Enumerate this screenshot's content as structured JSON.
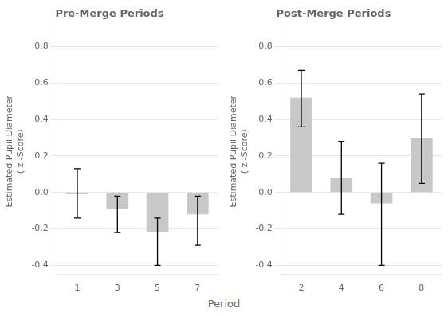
{
  "chart_data": [
    {
      "type": "bar",
      "title": "Pre-Merge Periods",
      "ylabel": "Estimated Pupil Diameter\n( z -Score)",
      "categories": [
        "1",
        "3",
        "5",
        "7"
      ],
      "values": [
        -0.01,
        -0.09,
        -0.22,
        -0.12
      ],
      "errors_upper": [
        0.14,
        0.07,
        0.08,
        0.1
      ],
      "errors_lower": [
        0.13,
        0.13,
        0.18,
        0.17
      ],
      "color": "#c8c8c8",
      "ylim": [
        -0.45,
        0.9
      ],
      "yticks": [
        -0.4,
        -0.2,
        {
          "value": 0.0,
          "label": "0.0"
        },
        0.2,
        0.4,
        0.6,
        0.8
      ],
      "grid": true
    },
    {
      "type": "bar",
      "title": "Post-Merge Periods",
      "ylabel": "Estimated Pupil Diameter\n( z -Score)",
      "categories": [
        "2",
        "4",
        "6",
        "8"
      ],
      "values": [
        0.52,
        0.08,
        -0.06,
        0.3
      ],
      "errors_upper": [
        0.15,
        0.2,
        0.22,
        0.24
      ],
      "errors_lower": [
        0.16,
        0.2,
        0.34,
        0.25
      ],
      "color": "#c8c8c8",
      "ylim": [
        -0.45,
        0.9
      ],
      "yticks": [
        -0.4,
        -0.2,
        {
          "value": 0.0,
          "label": "0.0"
        },
        0.2,
        0.4,
        0.6,
        0.8
      ],
      "grid": true
    }
  ],
  "xlabel": "Period"
}
